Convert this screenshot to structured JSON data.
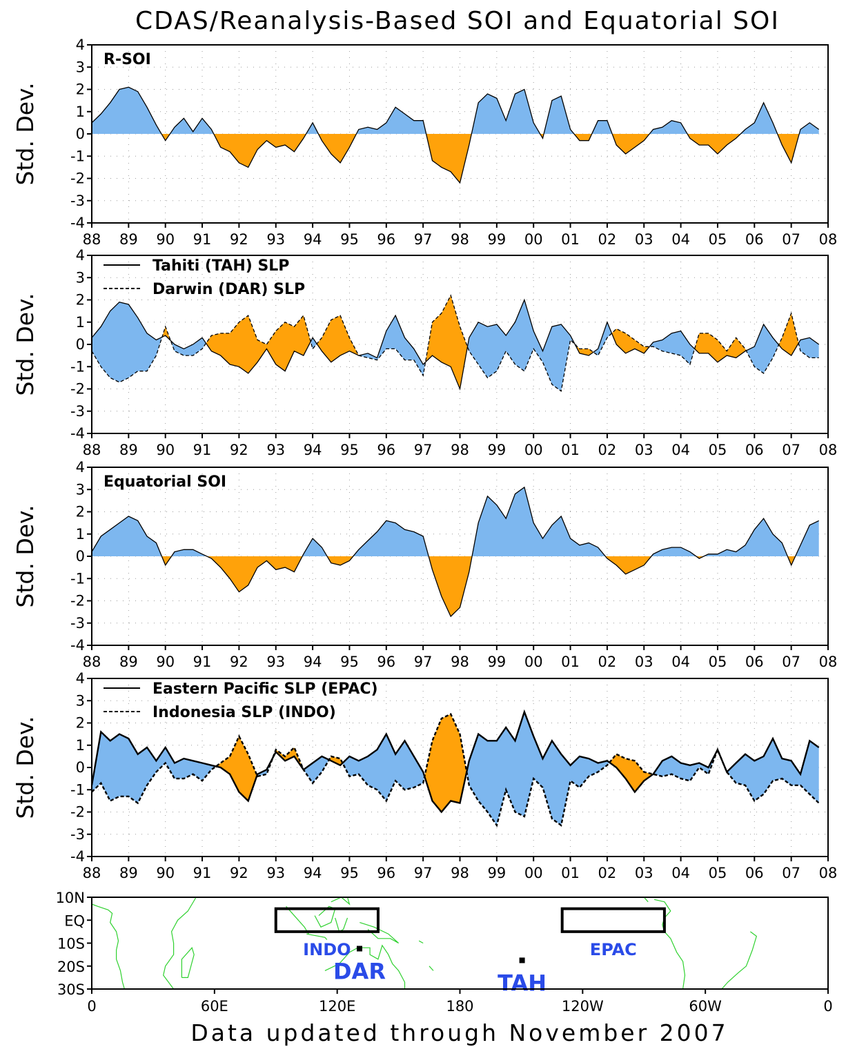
{
  "title": "CDAS/Reanalysis-Based SOI and Equatorial SOI",
  "footer": "Data updated through November 2007",
  "colors": {
    "positive": "#7db7ef",
    "negative": "#ffa20a",
    "map_land": "#2fd12f",
    "map_label": "#2a4be8"
  },
  "chart_data": [
    {
      "id": "r_soi",
      "type": "area",
      "title": "R-SOI",
      "ylabel": "Std. Dev.",
      "ylim": [
        -4,
        4
      ],
      "yticks": [
        4,
        3,
        2,
        1,
        0,
        -1,
        -2,
        -3,
        -4
      ],
      "xlim": [
        1988,
        2008
      ],
      "xtick_labels": [
        "88",
        "89",
        "90",
        "91",
        "92",
        "93",
        "94",
        "95",
        "96",
        "97",
        "98",
        "99",
        "00",
        "01",
        "02",
        "03",
        "04",
        "05",
        "06",
        "07",
        "08"
      ],
      "grid": true,
      "x": [
        1988.0,
        1988.25,
        1988.5,
        1988.75,
        1989.0,
        1989.25,
        1989.5,
        1989.75,
        1990.0,
        1990.25,
        1990.5,
        1990.75,
        1991.0,
        1991.25,
        1991.5,
        1991.75,
        1992.0,
        1992.25,
        1992.5,
        1992.75,
        1993.0,
        1993.25,
        1993.5,
        1993.75,
        1994.0,
        1994.25,
        1994.5,
        1994.75,
        1995.0,
        1995.25,
        1995.5,
        1995.75,
        1996.0,
        1996.25,
        1996.5,
        1996.75,
        1997.0,
        1997.25,
        1997.5,
        1997.75,
        1998.0,
        1998.25,
        1998.5,
        1998.75,
        1999.0,
        1999.25,
        1999.5,
        1999.75,
        2000.0,
        2000.25,
        2000.5,
        2000.75,
        2001.0,
        2001.25,
        2001.5,
        2001.75,
        2002.0,
        2002.25,
        2002.5,
        2002.75,
        2003.0,
        2003.25,
        2003.5,
        2003.75,
        2004.0,
        2004.25,
        2004.5,
        2004.75,
        2005.0,
        2005.25,
        2005.5,
        2005.75,
        2006.0,
        2006.25,
        2006.5,
        2006.75,
        2007.0,
        2007.25,
        2007.5,
        2007.75
      ],
      "series": [
        {
          "values": [
            0.5,
            0.9,
            1.4,
            2.0,
            2.1,
            1.9,
            1.2,
            0.4,
            -0.3,
            0.3,
            0.7,
            0.1,
            0.7,
            0.2,
            -0.6,
            -0.8,
            -1.3,
            -1.5,
            -0.7,
            -0.3,
            -0.6,
            -0.5,
            -0.8,
            -0.2,
            0.5,
            -0.3,
            -0.9,
            -1.3,
            -0.6,
            0.2,
            0.3,
            0.2,
            0.5,
            1.2,
            0.9,
            0.6,
            0.6,
            -1.2,
            -1.5,
            -1.7,
            -2.2,
            -0.5,
            1.4,
            1.8,
            1.6,
            0.6,
            1.8,
            2.0,
            0.5,
            -0.2,
            1.5,
            1.7,
            0.2,
            -0.3,
            -0.3,
            0.6,
            0.6,
            -0.5,
            -0.9,
            -0.6,
            -0.3,
            0.2,
            0.3,
            0.6,
            0.5,
            -0.2,
            -0.5,
            -0.5,
            -0.9,
            -0.5,
            -0.2,
            0.2,
            0.5,
            1.4,
            0.5,
            -0.5,
            -1.3,
            0.2,
            0.5,
            0.2
          ]
        }
      ]
    },
    {
      "id": "tah_dar",
      "type": "area",
      "ylabel": "Std. Dev.",
      "ylim": [
        -4,
        4
      ],
      "yticks": [
        4,
        3,
        2,
        1,
        0,
        -1,
        -2,
        -3,
        -4
      ],
      "xlim": [
        1988,
        2008
      ],
      "xtick_labels": [
        "88",
        "89",
        "90",
        "91",
        "92",
        "93",
        "94",
        "95",
        "96",
        "97",
        "98",
        "99",
        "00",
        "01",
        "02",
        "03",
        "04",
        "05",
        "06",
        "07",
        "08"
      ],
      "grid": true,
      "legend": [
        "Tahiti (TAH) SLP",
        "Darwin (DAR) SLP"
      ],
      "x": [
        1988.0,
        1988.25,
        1988.5,
        1988.75,
        1989.0,
        1989.25,
        1989.5,
        1989.75,
        1990.0,
        1990.25,
        1990.5,
        1990.75,
        1991.0,
        1991.25,
        1991.5,
        1991.75,
        1992.0,
        1992.25,
        1992.5,
        1992.75,
        1993.0,
        1993.25,
        1993.5,
        1993.75,
        1994.0,
        1994.25,
        1994.5,
        1994.75,
        1995.0,
        1995.25,
        1995.5,
        1995.75,
        1996.0,
        1996.25,
        1996.5,
        1996.75,
        1997.0,
        1997.25,
        1997.5,
        1997.75,
        1998.0,
        1998.25,
        1998.5,
        1998.75,
        1999.0,
        1999.25,
        1999.5,
        1999.75,
        2000.0,
        2000.25,
        2000.5,
        2000.75,
        2001.0,
        2001.25,
        2001.5,
        2001.75,
        2002.0,
        2002.25,
        2002.5,
        2002.75,
        2003.0,
        2003.25,
        2003.5,
        2003.75,
        2004.0,
        2004.25,
        2004.5,
        2004.75,
        2005.0,
        2005.25,
        2005.5,
        2005.75,
        2006.0,
        2006.25,
        2006.5,
        2006.75,
        2007.0,
        2007.25,
        2007.5,
        2007.75
      ],
      "series": [
        {
          "name": "Tahiti (TAH) SLP",
          "dash": false,
          "values": [
            0.3,
            0.8,
            1.5,
            1.9,
            1.8,
            1.2,
            0.5,
            0.2,
            0.4,
            0.0,
            -0.2,
            0.0,
            0.3,
            -0.3,
            -0.5,
            -0.9,
            -1.0,
            -1.3,
            -0.8,
            -0.2,
            -0.9,
            -1.2,
            -0.3,
            -0.5,
            0.3,
            -0.3,
            -0.8,
            -0.5,
            -0.3,
            -0.5,
            -0.4,
            -0.6,
            0.6,
            1.3,
            0.3,
            -0.2,
            -0.9,
            -0.5,
            -0.8,
            -1.0,
            -2.0,
            0.3,
            1.0,
            0.8,
            0.9,
            0.4,
            1.0,
            2.0,
            0.6,
            -0.3,
            0.8,
            0.9,
            0.4,
            -0.4,
            -0.5,
            -0.2,
            1.0,
            0.0,
            -0.4,
            -0.2,
            -0.4,
            0.1,
            0.2,
            0.5,
            0.6,
            0.0,
            -0.4,
            -0.4,
            -0.8,
            -0.5,
            -0.6,
            -0.3,
            -0.1,
            0.9,
            0.3,
            -0.2,
            -0.5,
            0.2,
            0.3,
            0.0
          ]
        },
        {
          "name": "Darwin (DAR) SLP",
          "dash": true,
          "values": [
            -0.3,
            -1.0,
            -1.5,
            -1.7,
            -1.5,
            -1.2,
            -1.2,
            -0.5,
            0.8,
            -0.3,
            -0.5,
            -0.5,
            -0.2,
            0.4,
            0.5,
            0.5,
            1.0,
            1.3,
            0.2,
            0.0,
            0.6,
            1.0,
            0.8,
            1.3,
            -0.2,
            0.3,
            1.1,
            1.3,
            0.3,
            -0.5,
            -0.6,
            -0.7,
            -0.2,
            -0.2,
            -0.7,
            -0.7,
            -1.4,
            1.0,
            1.4,
            2.2,
            0.8,
            -0.3,
            -0.9,
            -1.5,
            -1.2,
            -0.3,
            -0.9,
            -1.2,
            -0.2,
            -0.8,
            -1.8,
            -2.1,
            0.2,
            -0.2,
            -0.2,
            -0.5,
            0.3,
            0.7,
            0.5,
            0.2,
            -0.1,
            -0.1,
            -0.3,
            -0.4,
            -0.5,
            -0.9,
            0.5,
            0.5,
            0.2,
            -0.3,
            0.3,
            -0.2,
            -1.0,
            -1.3,
            -0.6,
            0.3,
            1.4,
            -0.3,
            -0.6,
            -0.6
          ]
        }
      ]
    },
    {
      "id": "eq_soi",
      "type": "area",
      "title": "Equatorial SOI",
      "ylabel": "Std. Dev.",
      "ylim": [
        -4,
        4
      ],
      "yticks": [
        4,
        3,
        2,
        1,
        0,
        -1,
        -2,
        -3,
        -4
      ],
      "xlim": [
        1988,
        2008
      ],
      "xtick_labels": [
        "88",
        "89",
        "90",
        "91",
        "92",
        "93",
        "94",
        "95",
        "96",
        "97",
        "98",
        "99",
        "00",
        "01",
        "02",
        "03",
        "04",
        "05",
        "06",
        "07",
        "08"
      ],
      "grid": true,
      "x": [
        1988.0,
        1988.25,
        1988.5,
        1988.75,
        1989.0,
        1989.25,
        1989.5,
        1989.75,
        1990.0,
        1990.25,
        1990.5,
        1990.75,
        1991.0,
        1991.25,
        1991.5,
        1991.75,
        1992.0,
        1992.25,
        1992.5,
        1992.75,
        1993.0,
        1993.25,
        1993.5,
        1993.75,
        1994.0,
        1994.25,
        1994.5,
        1994.75,
        1995.0,
        1995.25,
        1995.5,
        1995.75,
        1996.0,
        1996.25,
        1996.5,
        1996.75,
        1997.0,
        1997.25,
        1997.5,
        1997.75,
        1998.0,
        1998.25,
        1998.5,
        1998.75,
        1999.0,
        1999.25,
        1999.5,
        1999.75,
        2000.0,
        2000.25,
        2000.5,
        2000.75,
        2001.0,
        2001.25,
        2001.5,
        2001.75,
        2002.0,
        2002.25,
        2002.5,
        2002.75,
        2003.0,
        2003.25,
        2003.5,
        2003.75,
        2004.0,
        2004.25,
        2004.5,
        2004.75,
        2005.0,
        2005.25,
        2005.5,
        2005.75,
        2006.0,
        2006.25,
        2006.5,
        2006.75,
        2007.0,
        2007.25,
        2007.5,
        2007.75
      ],
      "series": [
        {
          "values": [
            0.2,
            0.9,
            1.2,
            1.5,
            1.8,
            1.6,
            0.9,
            0.6,
            -0.4,
            0.2,
            0.3,
            0.3,
            0.1,
            -0.1,
            -0.5,
            -1.0,
            -1.6,
            -1.3,
            -0.5,
            -0.2,
            -0.6,
            -0.5,
            -0.7,
            0.1,
            0.8,
            0.4,
            -0.3,
            -0.4,
            -0.2,
            0.3,
            0.7,
            1.1,
            1.6,
            1.5,
            1.2,
            1.1,
            0.9,
            -0.6,
            -1.8,
            -2.7,
            -2.3,
            -0.7,
            1.5,
            2.7,
            2.3,
            1.7,
            2.8,
            3.1,
            1.5,
            0.8,
            1.4,
            1.8,
            0.8,
            0.5,
            0.6,
            0.4,
            -0.1,
            -0.4,
            -0.8,
            -0.6,
            -0.4,
            0.1,
            0.3,
            0.4,
            0.4,
            0.2,
            -0.1,
            0.1,
            0.1,
            0.3,
            0.2,
            0.5,
            1.2,
            1.7,
            1.0,
            0.6,
            -0.4,
            0.5,
            1.4,
            1.6
          ]
        }
      ]
    },
    {
      "id": "epac_indo",
      "type": "area",
      "ylabel": "Std. Dev.",
      "ylim": [
        -4,
        4
      ],
      "yticks": [
        4,
        3,
        2,
        1,
        0,
        -1,
        -2,
        -3,
        -4
      ],
      "xlim": [
        1988,
        2008
      ],
      "xtick_labels": [
        "88",
        "89",
        "90",
        "91",
        "92",
        "93",
        "94",
        "95",
        "96",
        "97",
        "98",
        "99",
        "00",
        "01",
        "02",
        "03",
        "04",
        "05",
        "06",
        "07",
        "08"
      ],
      "grid": true,
      "legend": [
        "Eastern Pacific SLP (EPAC)",
        "Indonesia SLP (INDO)"
      ],
      "x": [
        1988.0,
        1988.25,
        1988.5,
        1988.75,
        1989.0,
        1989.25,
        1989.5,
        1989.75,
        1990.0,
        1990.25,
        1990.5,
        1990.75,
        1991.0,
        1991.25,
        1991.5,
        1991.75,
        1992.0,
        1992.25,
        1992.5,
        1992.75,
        1993.0,
        1993.25,
        1993.5,
        1993.75,
        1994.0,
        1994.25,
        1994.5,
        1994.75,
        1995.0,
        1995.25,
        1995.5,
        1995.75,
        1996.0,
        1996.25,
        1996.5,
        1996.75,
        1997.0,
        1997.25,
        1997.5,
        1997.75,
        1998.0,
        1998.25,
        1998.5,
        1998.75,
        1999.0,
        1999.25,
        1999.5,
        1999.75,
        2000.0,
        2000.25,
        2000.5,
        2000.75,
        2001.0,
        2001.25,
        2001.5,
        2001.75,
        2002.0,
        2002.25,
        2002.5,
        2002.75,
        2003.0,
        2003.25,
        2003.5,
        2003.75,
        2004.0,
        2004.25,
        2004.5,
        2004.75,
        2005.0,
        2005.25,
        2005.5,
        2005.75,
        2006.0,
        2006.25,
        2006.5,
        2006.75,
        2007.0,
        2007.25,
        2007.5,
        2007.75
      ],
      "series": [
        {
          "name": "Eastern Pacific SLP (EPAC)",
          "dash": false,
          "values": [
            -0.8,
            1.6,
            1.2,
            1.5,
            1.3,
            0.6,
            0.9,
            0.3,
            0.9,
            0.2,
            0.4,
            0.3,
            0.2,
            0.1,
            0.0,
            -0.3,
            -1.1,
            -1.5,
            -0.3,
            -0.1,
            0.7,
            0.3,
            0.5,
            -0.1,
            0.2,
            0.5,
            0.3,
            0.1,
            0.5,
            0.3,
            0.5,
            0.8,
            1.5,
            0.6,
            1.2,
            0.5,
            -0.2,
            -1.5,
            -2.0,
            -1.5,
            -1.6,
            0.3,
            1.5,
            1.2,
            1.2,
            1.8,
            1.2,
            2.5,
            1.4,
            0.4,
            1.2,
            0.6,
            0.1,
            0.5,
            0.4,
            0.2,
            0.3,
            0.0,
            -0.5,
            -1.1,
            -0.6,
            -0.3,
            0.3,
            0.5,
            0.2,
            0.1,
            0.2,
            0.0,
            0.8,
            -0.2,
            0.2,
            0.6,
            0.3,
            0.5,
            1.3,
            0.4,
            0.3,
            -0.3,
            1.2,
            0.9
          ]
        },
        {
          "name": "Indonesia SLP (INDO)",
          "dash": true,
          "values": [
            -1.1,
            -0.7,
            -1.5,
            -1.3,
            -1.3,
            -1.6,
            -0.8,
            -0.2,
            0.2,
            -0.5,
            -0.5,
            -0.3,
            -0.6,
            -0.1,
            0.2,
            0.5,
            1.4,
            0.6,
            -0.4,
            -0.3,
            0.8,
            0.5,
            0.9,
            -0.1,
            -0.7,
            -0.2,
            0.5,
            0.4,
            -0.4,
            -0.3,
            -0.8,
            -1.0,
            -1.5,
            -0.6,
            -1.0,
            -0.9,
            -0.7,
            1.2,
            2.2,
            2.4,
            1.5,
            -0.8,
            -1.5,
            -2.0,
            -2.6,
            -1.0,
            -2.0,
            -2.2,
            -0.5,
            -0.9,
            -2.3,
            -2.6,
            -0.6,
            -0.9,
            -0.4,
            -0.2,
            0.1,
            0.6,
            0.4,
            0.3,
            -0.2,
            -0.3,
            -0.4,
            -0.3,
            -0.5,
            -0.6,
            0.0,
            -0.3,
            0.8,
            -0.2,
            -0.7,
            -0.8,
            -1.5,
            -1.2,
            -0.6,
            -0.5,
            -0.8,
            -0.8,
            -1.2,
            -1.6
          ]
        }
      ]
    }
  ],
  "map": {
    "y_ticks": [
      "10N",
      "EQ",
      "10S",
      "20S",
      "30S"
    ],
    "x_ticks": [
      "0",
      "60E",
      "120E",
      "180",
      "120W",
      "60W",
      "0"
    ],
    "lat_range": [
      -30,
      10
    ],
    "lon_range": [
      0,
      360
    ],
    "boxes": [
      {
        "label": "INDO",
        "lon": [
          90,
          140
        ],
        "lat": [
          -5,
          5
        ]
      },
      {
        "label": "EPAC",
        "lon": [
          230,
          280
        ],
        "lat": [
          -5,
          5
        ]
      }
    ],
    "stations": [
      {
        "label": "DAR",
        "lon": 130.9,
        "lat": -12.4
      },
      {
        "label": "TAH",
        "lon": 210.4,
        "lat": -17.5
      }
    ]
  }
}
